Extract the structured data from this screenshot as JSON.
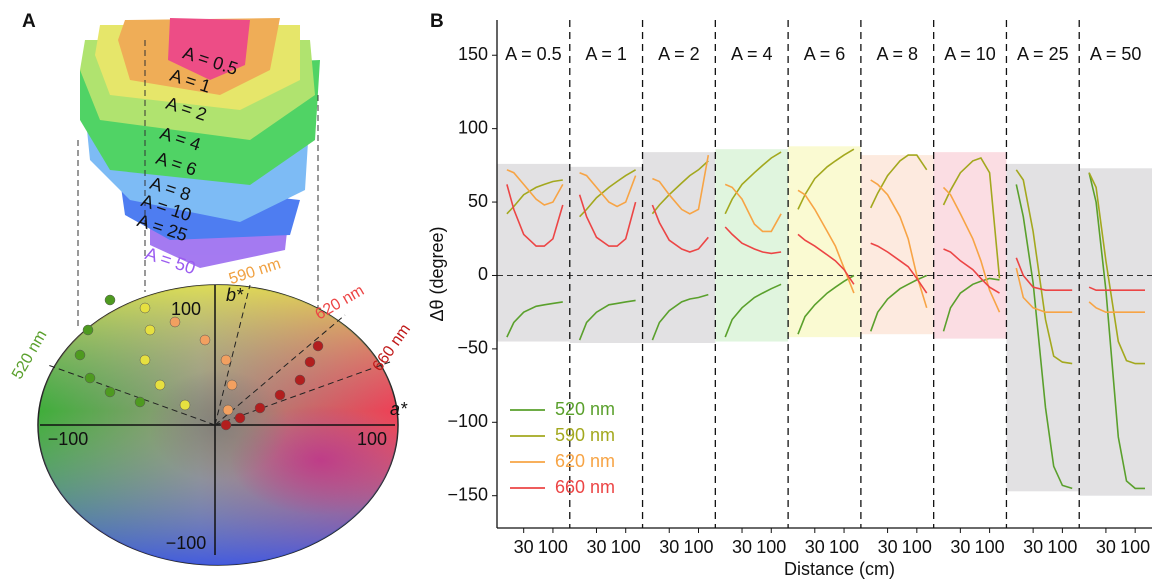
{
  "panel_a": {
    "label": "A",
    "stack_labels": [
      "A = 0.5",
      "A = 1",
      "A = 2",
      "A = 4",
      "A = 6",
      "A = 8",
      "A = 10",
      "A = 25",
      "A = 50"
    ],
    "axis_a": "a*",
    "axis_b": "b*",
    "ticks": [
      "−100",
      "100",
      "100",
      "−100"
    ],
    "wavelengths": [
      "520 nm",
      "590 nm",
      "620 nm",
      "660 nm"
    ]
  },
  "chart_data": {
    "type": "line",
    "label": "B",
    "xlabel": "Distance (cm)",
    "ylabel": "Δθ (degree)",
    "xlim": [
      10,
      200
    ],
    "xticks": [
      30,
      100
    ],
    "log_x": true,
    "ylim": [
      -172,
      174
    ],
    "yticks": [
      {
        "value": -150,
        "label": "−150"
      },
      {
        "value": -100,
        "label": "−100"
      },
      {
        "value": -50,
        "label": "−50"
      },
      0,
      50,
      100,
      150
    ],
    "zero_line": true,
    "legend": "lower left",
    "x": [
      15,
      20,
      30,
      50,
      70,
      100,
      150
    ],
    "panels": [
      {
        "title": "A = 0.5",
        "band": [
          -45,
          76
        ],
        "band_color": "#e2e1e3"
      },
      {
        "title": "A = 1",
        "band": [
          -46,
          74
        ],
        "band_color": "#e2e1e3"
      },
      {
        "title": "A = 2",
        "band": [
          -46,
          84
        ],
        "band_color": "#e2e1e3"
      },
      {
        "title": "A = 4",
        "band": [
          -45,
          86
        ],
        "band_color": "#e0f5de"
      },
      {
        "title": "A = 6",
        "band": [
          -42,
          88
        ],
        "band_color": "#fafad2"
      },
      {
        "title": "A = 8",
        "band": [
          -40,
          82
        ],
        "band_color": "#fdeadf"
      },
      {
        "title": "A = 10",
        "band": [
          -43,
          84
        ],
        "band_color": "#fbdde3"
      },
      {
        "title": "A = 25",
        "band": [
          -147,
          76
        ],
        "band_color": "#e2e1e3"
      },
      {
        "title": "A = 50",
        "band": [
          -150,
          73
        ],
        "band_color": "#e2e1e3"
      }
    ],
    "series": [
      {
        "name": "520 nm",
        "color": "#5aa02c",
        "values": [
          [
            -42,
            -32,
            -25,
            -21,
            -20,
            -19,
            -18
          ],
          [
            -44,
            -32,
            -25,
            -20,
            -19,
            -18,
            -17
          ],
          [
            -44,
            -32,
            -24,
            -18,
            -16,
            -15,
            -13
          ],
          [
            -42,
            -30,
            -22,
            -15,
            -12,
            -9,
            -6
          ],
          [
            -40,
            -28,
            -20,
            -12,
            -8,
            -4,
            0
          ],
          [
            -38,
            -25,
            -16,
            -9,
            -6,
            -3,
            0
          ],
          [
            -38,
            -22,
            -12,
            -6,
            -4,
            -2,
            -3
          ],
          [
            62,
            40,
            -5,
            -90,
            -130,
            -143,
            -145
          ],
          [
            70,
            50,
            -10,
            -110,
            -140,
            -145,
            -145
          ]
        ]
      },
      {
        "name": "590 nm",
        "color": "#a3a81e",
        "values": [
          [
            42,
            47,
            55,
            60,
            62,
            64,
            65
          ],
          [
            40,
            45,
            53,
            60,
            64,
            68,
            72
          ],
          [
            42,
            48,
            55,
            63,
            68,
            72,
            78
          ],
          [
            42,
            52,
            62,
            70,
            75,
            80,
            84
          ],
          [
            45,
            55,
            66,
            74,
            78,
            82,
            86
          ],
          [
            46,
            56,
            68,
            78,
            82,
            82,
            72
          ],
          [
            48,
            58,
            70,
            78,
            80,
            70,
            -2
          ],
          [
            72,
            65,
            30,
            -30,
            -55,
            -59,
            -60
          ],
          [
            70,
            60,
            10,
            -45,
            -58,
            -60,
            -60
          ]
        ]
      },
      {
        "name": "620 nm",
        "color": "#f7a445",
        "values": [
          [
            72,
            70,
            62,
            52,
            48,
            50,
            62
          ],
          [
            70,
            68,
            60,
            50,
            47,
            50,
            68
          ],
          [
            66,
            64,
            55,
            45,
            42,
            45,
            82
          ],
          [
            62,
            60,
            52,
            35,
            30,
            30,
            42
          ],
          [
            58,
            55,
            45,
            30,
            20,
            5,
            -12
          ],
          [
            65,
            62,
            55,
            40,
            25,
            0,
            -22
          ],
          [
            60,
            55,
            42,
            25,
            10,
            -10,
            -25
          ],
          [
            5,
            -15,
            -22,
            -25,
            -25,
            -25,
            -25
          ],
          [
            -18,
            -22,
            -25,
            -25,
            -25,
            -25,
            -25
          ]
        ]
      },
      {
        "name": "660 nm",
        "color": "#ec4545",
        "values": [
          [
            62,
            45,
            28,
            20,
            20,
            25,
            48
          ],
          [
            55,
            40,
            26,
            20,
            20,
            25,
            50
          ],
          [
            48,
            36,
            24,
            18,
            16,
            18,
            26
          ],
          [
            33,
            28,
            22,
            18,
            16,
            15,
            16
          ],
          [
            28,
            24,
            20,
            14,
            10,
            4,
            -6
          ],
          [
            22,
            20,
            16,
            10,
            6,
            -2,
            -12
          ],
          [
            18,
            16,
            10,
            4,
            -2,
            -8,
            -12
          ],
          [
            12,
            0,
            -8,
            -10,
            -10,
            -10,
            -10
          ],
          [
            -8,
            -10,
            -10,
            -10,
            -10,
            -10,
            -10
          ]
        ]
      }
    ]
  }
}
